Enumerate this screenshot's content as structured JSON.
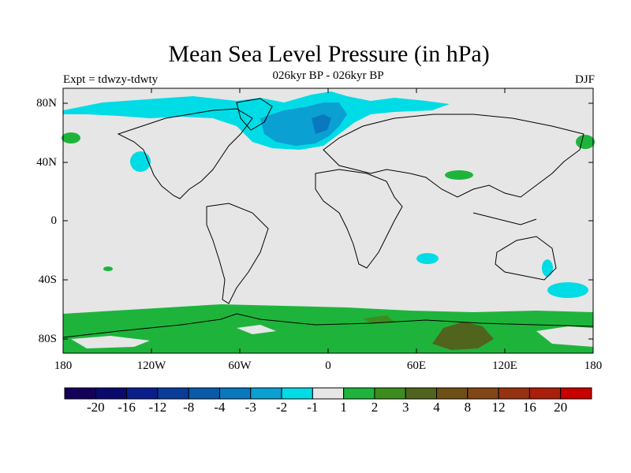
{
  "map": {
    "title": "Mean Sea Level Pressure (in hPa)",
    "subtitle": "026kyr BP - 026kyr BP",
    "experiment": "Expt = tdwzy-tdwty",
    "season": "DJF",
    "lat_ticks": [
      "80N",
      "40N",
      "0",
      "40S",
      "80S"
    ],
    "lon_ticks": [
      "180",
      "120W",
      "60W",
      "0",
      "60E",
      "120E",
      "180"
    ],
    "colors": {
      "background": "#e6e6e6",
      "ocean_land_outline": "#000000"
    }
  },
  "colorbar": {
    "colors": [
      "#14005a",
      "#0a0a6e",
      "#0a1e8c",
      "#0a3c9b",
      "#0a5aaa",
      "#0a78be",
      "#0aa0d2",
      "#00dce6",
      "#e6e6e6",
      "#1eb43c",
      "#3c8c1e",
      "#50641e",
      "#6e5014",
      "#824614",
      "#96320f",
      "#aa1e0a",
      "#c80000"
    ],
    "labels": [
      "-20",
      "-16",
      "-12",
      "-8",
      "-4",
      "-3",
      "-2",
      "-1",
      "1",
      "2",
      "3",
      "4",
      "8",
      "12",
      "16",
      "20"
    ]
  }
}
